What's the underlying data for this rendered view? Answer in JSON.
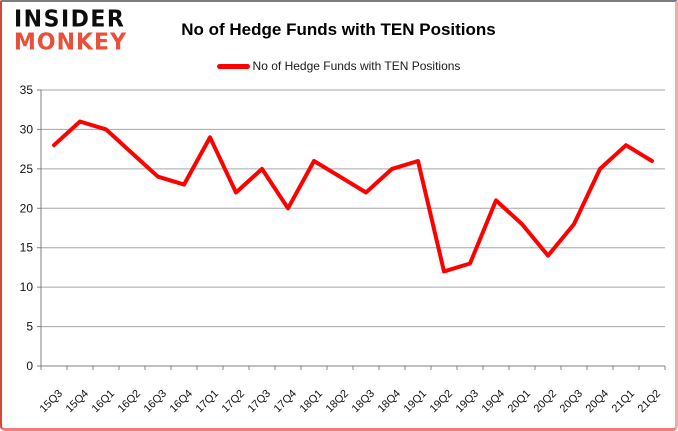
{
  "logo": {
    "line1": "INSIDER",
    "line2": "MONKEY"
  },
  "header": {
    "title": "No of Hedge Funds with TEN Positions"
  },
  "legend": {
    "label": "No of Hedge Funds with TEN Positions",
    "color": "#ff0000"
  },
  "chart_data": {
    "type": "line",
    "title": "No of Hedge Funds with TEN Positions",
    "categories": [
      "15Q3",
      "15Q4",
      "16Q1",
      "16Q2",
      "16Q3",
      "16Q4",
      "17Q1",
      "17Q2",
      "17Q3",
      "17Q4",
      "18Q1",
      "18Q2",
      "18Q3",
      "18Q4",
      "19Q1",
      "19Q2",
      "19Q3",
      "19Q4",
      "20Q1",
      "20Q2",
      "20Q3",
      "20Q4",
      "21Q1",
      "21Q2"
    ],
    "values": [
      28,
      31,
      30,
      27,
      24,
      23,
      29,
      22,
      25,
      20,
      26,
      24,
      22,
      25,
      26,
      12,
      13,
      21,
      18,
      14,
      18,
      25,
      28,
      26
    ],
    "xlabel": "",
    "ylabel": "",
    "ylim": [
      0,
      35
    ],
    "yticks": [
      0,
      5,
      10,
      15,
      20,
      25,
      30,
      35
    ],
    "grid": true,
    "legend_position": "top-center",
    "series_color": "#ff0000",
    "line_width": 4,
    "gridline_color": "#a6a6a6",
    "axis_color": "#808080",
    "tick_label_color": "#111111"
  }
}
